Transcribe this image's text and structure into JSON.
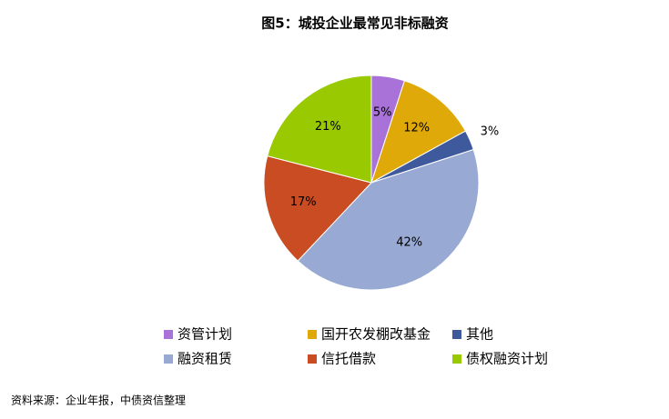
{
  "chart_data": {
    "type": "pie",
    "title": "图5：城投企业最常见非标融资",
    "categories": [
      "资管计划",
      "国开农发棚改基金",
      "其他",
      "融资租赁",
      "信托借款",
      "债权融资计划"
    ],
    "values": [
      5,
      12,
      3,
      42,
      17,
      21
    ],
    "value_labels": [
      "5%",
      "12%",
      "3%",
      "42%",
      "17%",
      "21%"
    ],
    "colors": [
      "#a972d8",
      "#e0a90a",
      "#3f5a9c",
      "#98a9d3",
      "#c94c22",
      "#99c900"
    ],
    "source": "资料来源：企业年报，中债资信整理"
  }
}
